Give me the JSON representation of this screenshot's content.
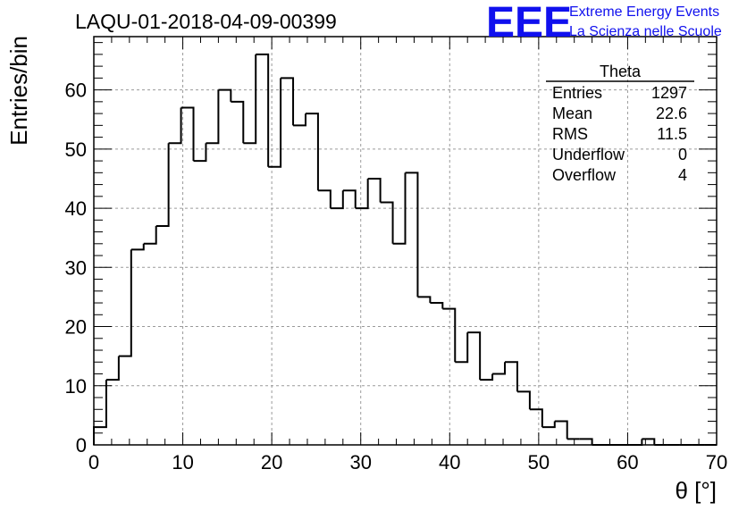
{
  "logo": {
    "mark": "EEE",
    "line1": "Extreme Energy Events",
    "line2": "La Scienza nelle Scuole",
    "color": "#1010ee"
  },
  "stats": {
    "name": "Theta",
    "rows": [
      {
        "label": "Entries",
        "value": "1297"
      },
      {
        "label": "Mean",
        "value": "22.6"
      },
      {
        "label": "RMS",
        "value": "11.5"
      },
      {
        "label": "Underflow",
        "value": "0"
      },
      {
        "label": "Overflow",
        "value": "4"
      }
    ]
  },
  "chart_data": {
    "type": "bar",
    "histogram": true,
    "title": "LAQU-01-2018-04-09-00399",
    "xlabel": "θ [°]",
    "ylabel": "Entries/bin",
    "xlim": [
      0,
      70
    ],
    "ylim": [
      0,
      69
    ],
    "grid": true,
    "bin_start": 0,
    "bin_width": 1.4,
    "values": [
      3,
      11,
      15,
      33,
      34,
      37,
      51,
      57,
      48,
      51,
      60,
      58,
      51,
      66,
      47,
      62,
      54,
      56,
      43,
      40,
      43,
      40,
      45,
      41,
      34,
      46,
      25,
      24,
      23,
      14,
      19,
      11,
      12,
      14,
      9,
      6,
      3,
      4,
      1,
      1,
      0,
      0,
      0,
      0,
      1,
      0,
      0,
      0,
      0,
      0
    ],
    "x_ticks": [
      0,
      10,
      20,
      30,
      40,
      50,
      60,
      70
    ],
    "y_ticks": [
      0,
      10,
      20,
      30,
      40,
      50,
      60
    ],
    "line_color": "#000000"
  }
}
